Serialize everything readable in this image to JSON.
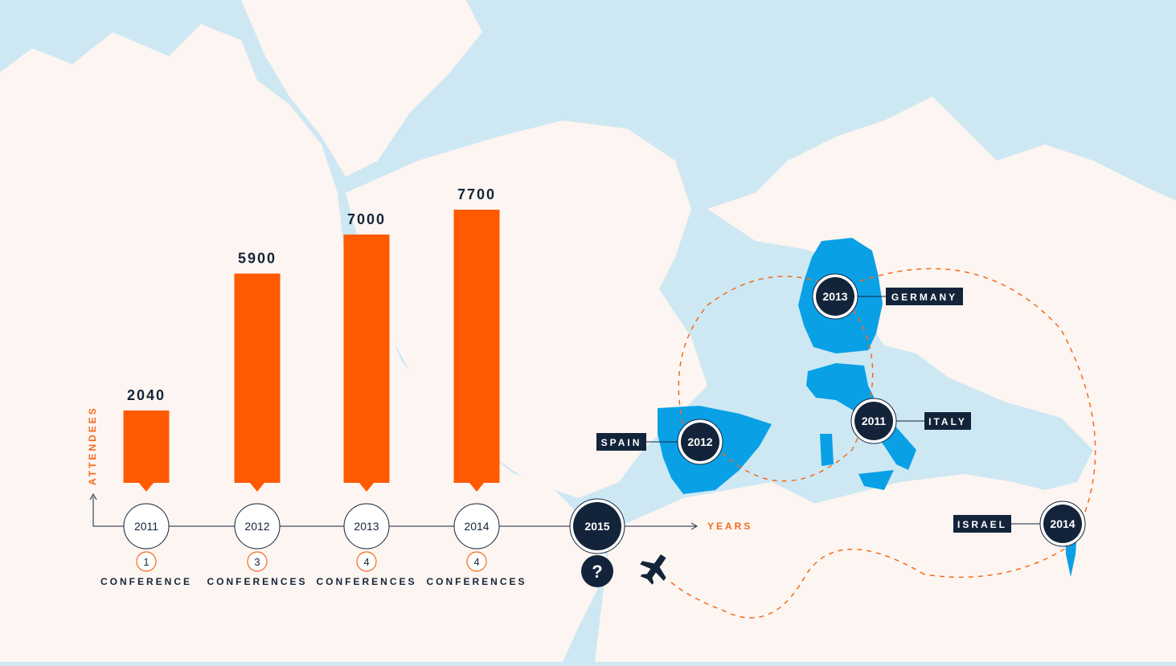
{
  "colors": {
    "land": "#fdf5f1",
    "sea": "#cde8f3",
    "bar": "#ff5a00",
    "highlight": "#0aa0e6",
    "navy": "#13243a",
    "orange_text": "#f26b1d"
  },
  "chart_data": {
    "type": "bar",
    "categories": [
      "2011",
      "2012",
      "2013",
      "2014"
    ],
    "values": [
      2040,
      5900,
      7000,
      7700
    ],
    "ylim": [
      0,
      9000
    ],
    "ylabel": "ATTENDEES",
    "xlabel": "YEARS",
    "future_year": "2015",
    "future_mark": "?",
    "conferences": [
      {
        "count": "1",
        "label": "CONFERENCE"
      },
      {
        "count": "3",
        "label": "CONFERENCES"
      },
      {
        "count": "4",
        "label": "CONFERENCES"
      },
      {
        "count": "4",
        "label": "CONFERENCES"
      }
    ]
  },
  "map": {
    "markers": [
      {
        "year": "2013",
        "country": "GERMANY"
      },
      {
        "year": "2012",
        "country": "SPAIN"
      },
      {
        "year": "2011",
        "country": "ITALY"
      },
      {
        "year": "2014",
        "country": "ISRAEL"
      }
    ],
    "plane_icon": "airplane-icon"
  }
}
